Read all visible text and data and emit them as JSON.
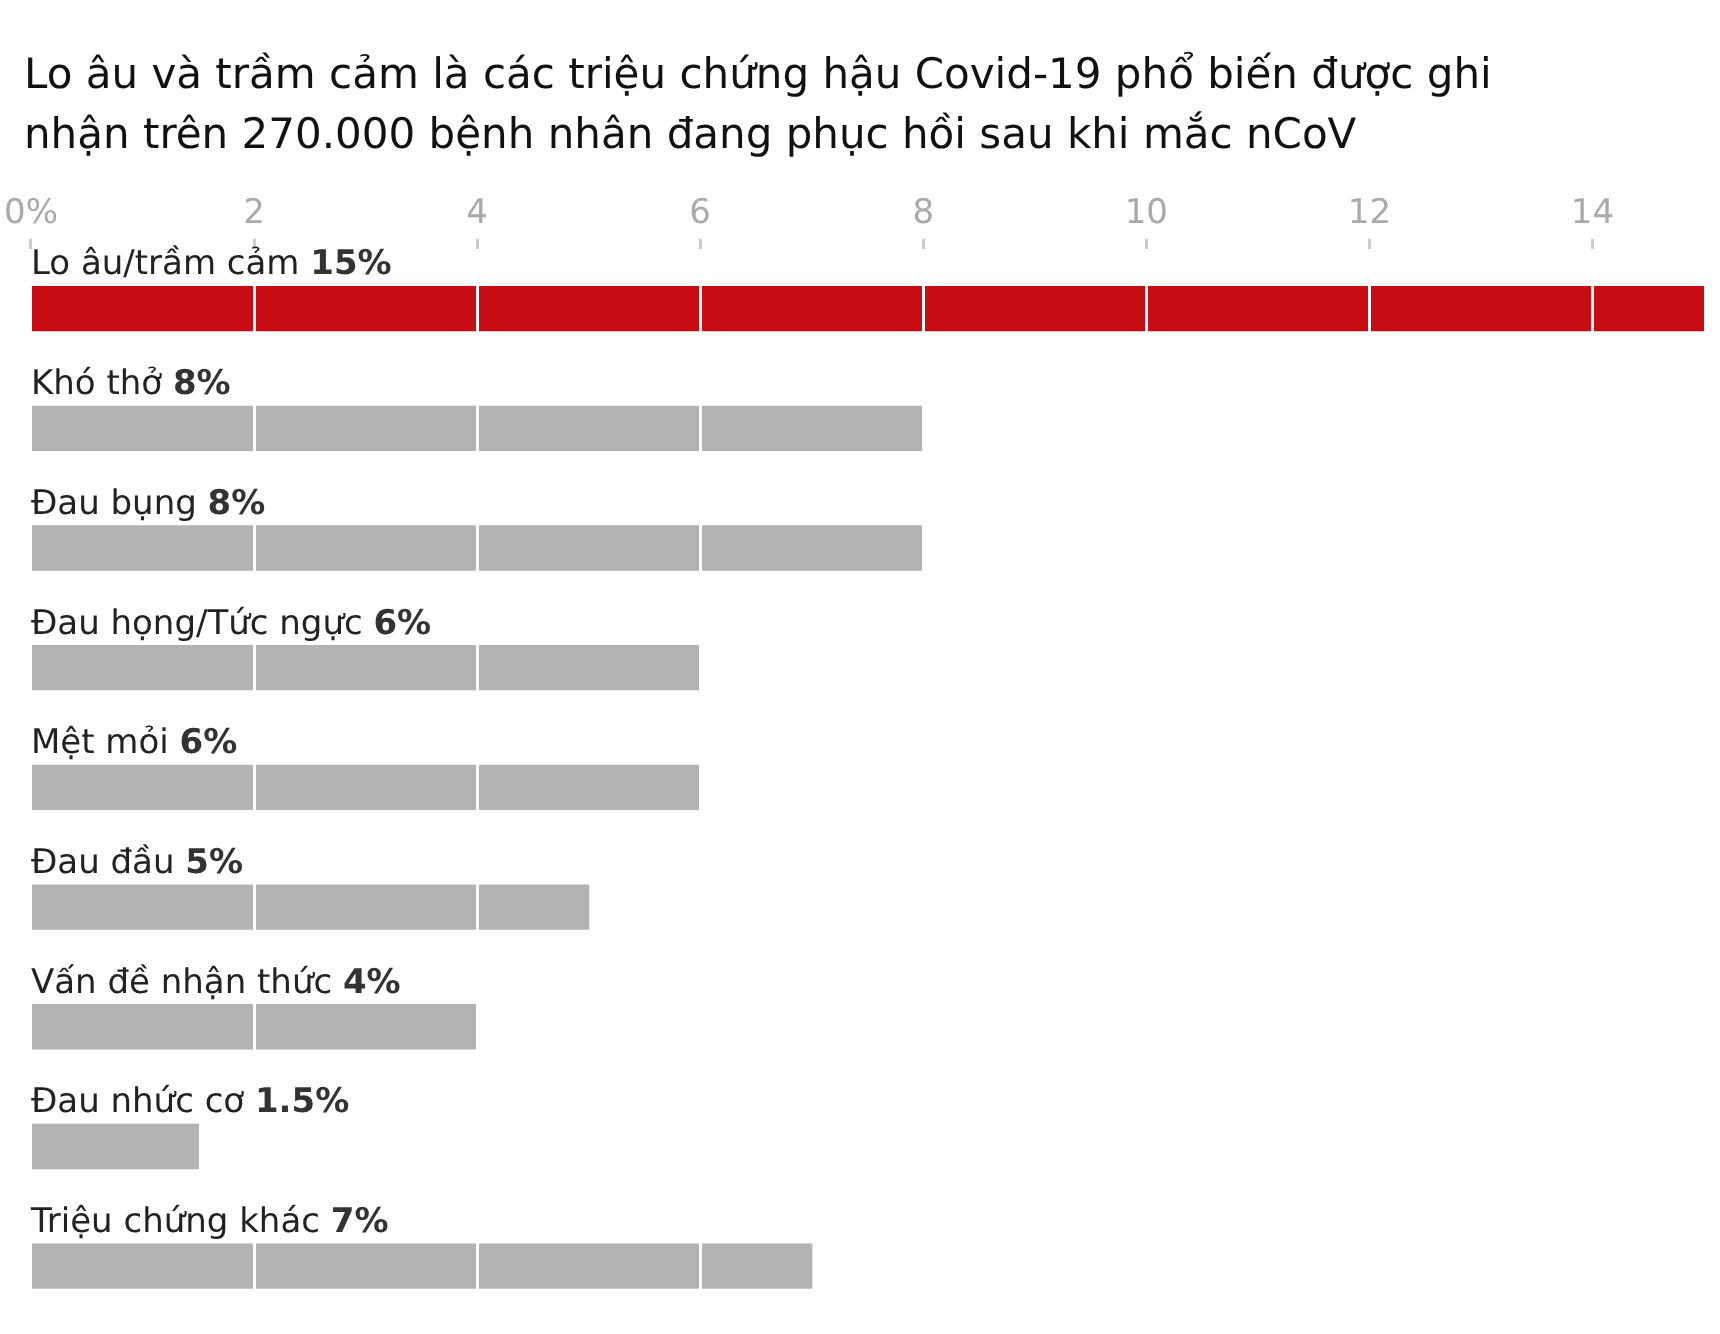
{
  "chart_data": {
    "type": "bar",
    "orientation": "horizontal",
    "title": "Lo âu và trầm cảm là các triệu chứng hậu Covid-19 phổ biến được ghi nhận trên 270.000 bệnh nhân đang phục hồi sau khi mắc nCoV",
    "categories": [
      "Lo âu/trầm cảm",
      "Khó thở",
      "Đau bụng",
      "Đau họng/Tức ngực",
      "Mệt mỏi",
      "Đau đầu",
      "Vấn đề nhận thức",
      "Đau nhức cơ",
      "Triệu chứng khác"
    ],
    "values": [
      15,
      8,
      8,
      6,
      6,
      5,
      4,
      1.5,
      7
    ],
    "value_labels": [
      "15%",
      "8%",
      "8%",
      "6%",
      "6%",
      "5%",
      "4%",
      "1.5%",
      "7%"
    ],
    "colors": [
      "#c80c14",
      "#b3b3b3",
      "#b3b3b3",
      "#b3b3b3",
      "#b3b3b3",
      "#b3b3b3",
      "#b3b3b3",
      "#b3b3b3",
      "#b3b3b3"
    ],
    "xlim": [
      0,
      15
    ],
    "xticks": [
      {
        "value": 0,
        "label": "0%"
      },
      2,
      4,
      6,
      8,
      10,
      12,
      14
    ],
    "grid": "x",
    "legend": false
  }
}
